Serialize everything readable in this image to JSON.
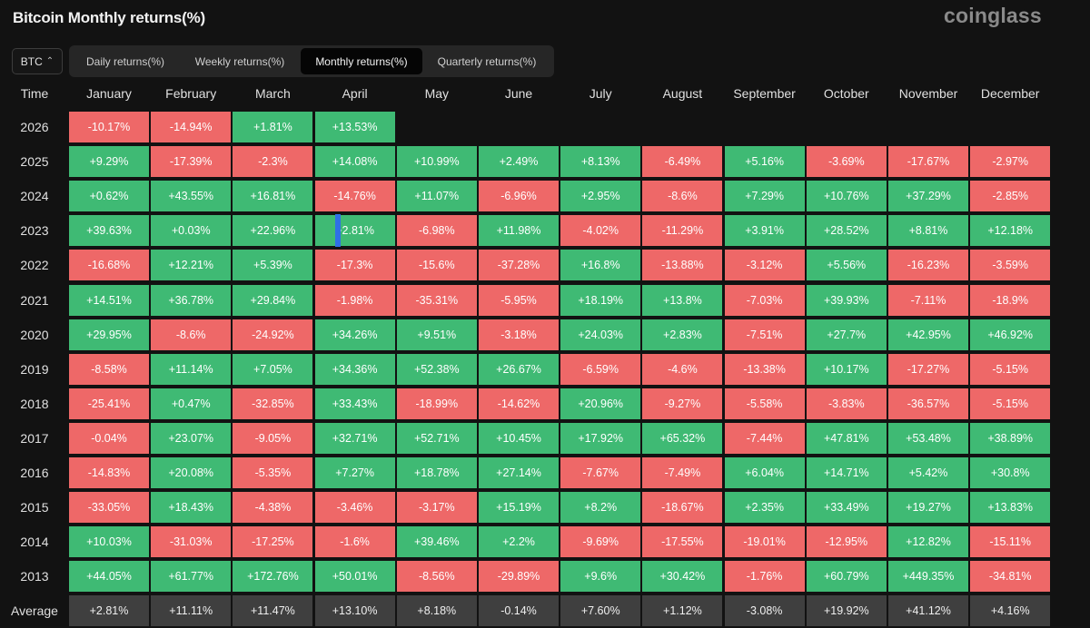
{
  "header": {
    "title": "Bitcoin Monthly returns(%)",
    "brand": "coinglass"
  },
  "coin_select": {
    "value": "BTC",
    "icon": "updown-chevron-icon"
  },
  "tabs": [
    {
      "label": "Daily returns(%)",
      "active": false
    },
    {
      "label": "Weekly returns(%)",
      "active": false
    },
    {
      "label": "Monthly returns(%)",
      "active": true
    },
    {
      "label": "Quarterly returns(%)",
      "active": false
    }
  ],
  "colors": {
    "positive": "#3fba74",
    "negative": "#ee6868",
    "average": "#3f3f3f"
  },
  "table": {
    "time_label": "Time",
    "months": [
      "January",
      "February",
      "March",
      "April",
      "May",
      "June",
      "July",
      "August",
      "September",
      "October",
      "November",
      "December"
    ],
    "rows": [
      {
        "year": "2026",
        "values": [
          "-10.17%",
          "-14.94%",
          "+1.81%",
          "+13.53%",
          "",
          "",
          "",
          "",
          "",
          "",
          "",
          ""
        ]
      },
      {
        "year": "2025",
        "values": [
          "+9.29%",
          "-17.39%",
          "-2.3%",
          "+14.08%",
          "+10.99%",
          "+2.49%",
          "+8.13%",
          "-6.49%",
          "+5.16%",
          "-3.69%",
          "-17.67%",
          "-2.97%"
        ]
      },
      {
        "year": "2024",
        "values": [
          "+0.62%",
          "+43.55%",
          "+16.81%",
          "-14.76%",
          "+11.07%",
          "-6.96%",
          "+2.95%",
          "-8.6%",
          "+7.29%",
          "+10.76%",
          "+37.29%",
          "-2.85%"
        ]
      },
      {
        "year": "2023",
        "values": [
          "+39.63%",
          "+0.03%",
          "+22.96%",
          "+2.81%",
          "-6.98%",
          "+11.98%",
          "-4.02%",
          "-11.29%",
          "+3.91%",
          "+28.52%",
          "+8.81%",
          "+12.18%"
        ]
      },
      {
        "year": "2022",
        "values": [
          "-16.68%",
          "+12.21%",
          "+5.39%",
          "-17.3%",
          "-15.6%",
          "-37.28%",
          "+16.8%",
          "-13.88%",
          "-3.12%",
          "+5.56%",
          "-16.23%",
          "-3.59%"
        ]
      },
      {
        "year": "2021",
        "values": [
          "+14.51%",
          "+36.78%",
          "+29.84%",
          "-1.98%",
          "-35.31%",
          "-5.95%",
          "+18.19%",
          "+13.8%",
          "-7.03%",
          "+39.93%",
          "-7.11%",
          "-18.9%"
        ]
      },
      {
        "year": "2020",
        "values": [
          "+29.95%",
          "-8.6%",
          "-24.92%",
          "+34.26%",
          "+9.51%",
          "-3.18%",
          "+24.03%",
          "+2.83%",
          "-7.51%",
          "+27.7%",
          "+42.95%",
          "+46.92%"
        ]
      },
      {
        "year": "2019",
        "values": [
          "-8.58%",
          "+11.14%",
          "+7.05%",
          "+34.36%",
          "+52.38%",
          "+26.67%",
          "-6.59%",
          "-4.6%",
          "-13.38%",
          "+10.17%",
          "-17.27%",
          "-5.15%"
        ]
      },
      {
        "year": "2018",
        "values": [
          "-25.41%",
          "+0.47%",
          "-32.85%",
          "+33.43%",
          "-18.99%",
          "-14.62%",
          "+20.96%",
          "-9.27%",
          "-5.58%",
          "-3.83%",
          "-36.57%",
          "-5.15%"
        ]
      },
      {
        "year": "2017",
        "values": [
          "-0.04%",
          "+23.07%",
          "-9.05%",
          "+32.71%",
          "+52.71%",
          "+10.45%",
          "+17.92%",
          "+65.32%",
          "-7.44%",
          "+47.81%",
          "+53.48%",
          "+38.89%"
        ]
      },
      {
        "year": "2016",
        "values": [
          "-14.83%",
          "+20.08%",
          "-5.35%",
          "+7.27%",
          "+18.78%",
          "+27.14%",
          "-7.67%",
          "-7.49%",
          "+6.04%",
          "+14.71%",
          "+5.42%",
          "+30.8%"
        ]
      },
      {
        "year": "2015",
        "values": [
          "-33.05%",
          "+18.43%",
          "-4.38%",
          "-3.46%",
          "-3.17%",
          "+15.19%",
          "+8.2%",
          "-18.67%",
          "+2.35%",
          "+33.49%",
          "+19.27%",
          "+13.83%"
        ]
      },
      {
        "year": "2014",
        "values": [
          "+10.03%",
          "-31.03%",
          "-17.25%",
          "-1.6%",
          "+39.46%",
          "+2.2%",
          "-9.69%",
          "-17.55%",
          "-19.01%",
          "-12.95%",
          "+12.82%",
          "-15.11%"
        ]
      },
      {
        "year": "2013",
        "values": [
          "+44.05%",
          "+61.77%",
          "+172.76%",
          "+50.01%",
          "-8.56%",
          "-29.89%",
          "+9.6%",
          "+30.42%",
          "-1.76%",
          "+60.79%",
          "+449.35%",
          "-34.81%"
        ]
      }
    ],
    "average": {
      "label": "Average",
      "values": [
        "+2.81%",
        "+11.11%",
        "+11.47%",
        "+13.10%",
        "+8.18%",
        "-0.14%",
        "+7.60%",
        "+1.12%",
        "-3.08%",
        "+19.92%",
        "+41.12%",
        "+4.16%"
      ]
    }
  }
}
